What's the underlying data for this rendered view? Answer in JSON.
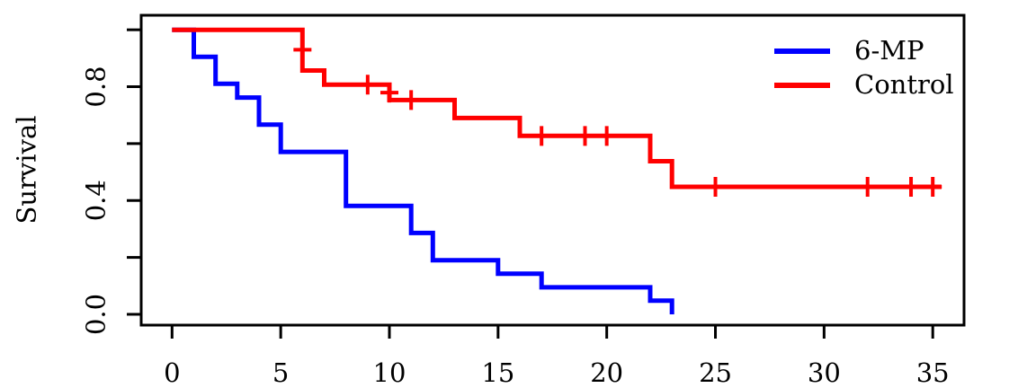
{
  "chart_data": {
    "type": "line",
    "subtype": "kaplan-meier-step",
    "title": "",
    "xlabel": "",
    "ylabel": "Survival",
    "grid": false,
    "legend_position": "top-right",
    "xlim": [
      -1.42,
      36.44
    ],
    "ylim": [
      -0.038,
      1.051
    ],
    "xticks": [
      0,
      5,
      10,
      15,
      20,
      25,
      30,
      35
    ],
    "yticks": [
      [
        0.0,
        "0.0"
      ],
      [
        0.2,
        ""
      ],
      [
        0.4,
        "0.4"
      ],
      [
        0.6,
        ""
      ],
      [
        0.8,
        "0.8"
      ],
      [
        1.0,
        ""
      ]
    ],
    "axis_color": "#000000",
    "series": [
      {
        "name": "6-MP",
        "color": "#0000ff",
        "start": [
          0,
          1.0
        ],
        "steps": [
          [
            1,
            0.905
          ],
          [
            2,
            0.81
          ],
          [
            3,
            0.762
          ],
          [
            4,
            0.667
          ],
          [
            5,
            0.571
          ],
          [
            8,
            0.381
          ],
          [
            11,
            0.286
          ],
          [
            12,
            0.19
          ],
          [
            15,
            0.143
          ],
          [
            17,
            0.095
          ],
          [
            22,
            0.048
          ],
          [
            23,
            0.0
          ]
        ],
        "end_time": 23,
        "censors": []
      },
      {
        "name": "Control",
        "color": "#ff0000",
        "start": [
          0,
          1.0
        ],
        "steps": [
          [
            6,
            0.857
          ],
          [
            7,
            0.807
          ],
          [
            10,
            0.753
          ],
          [
            13,
            0.69
          ],
          [
            16,
            0.627
          ],
          [
            22,
            0.538
          ],
          [
            23,
            0.448
          ]
        ],
        "end_time": 35.4,
        "censors": [
          [
            6,
            0.93
          ],
          [
            9,
            0.807
          ],
          [
            10,
            0.779
          ],
          [
            11,
            0.753
          ],
          [
            17,
            0.627
          ],
          [
            19,
            0.627
          ],
          [
            20,
            0.627
          ],
          [
            25,
            0.448
          ],
          [
            32,
            0.448
          ],
          [
            34,
            0.448
          ],
          [
            35,
            0.448
          ]
        ]
      }
    ]
  }
}
